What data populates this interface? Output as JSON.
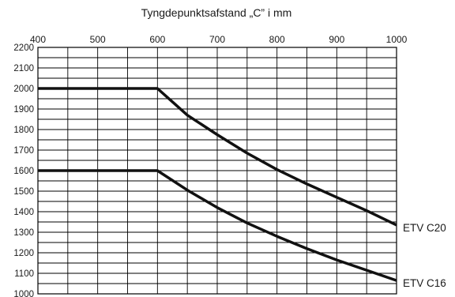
{
  "chart_data": {
    "type": "line",
    "title": "Tyngdepunktsafstand „C” i mm",
    "xlabel": "",
    "ylabel": "",
    "xlim": [
      400,
      1000
    ],
    "ylim": [
      1000,
      2200
    ],
    "x_ticks": [
      400,
      500,
      600,
      700,
      800,
      900,
      1000
    ],
    "y_ticks": [
      2200,
      2100,
      2000,
      1900,
      1800,
      1700,
      1600,
      1500,
      1400,
      1300,
      1200,
      1100,
      1000
    ],
    "x_minor_step": 50,
    "y_minor_step": 50,
    "x_axis_position": "top",
    "grid": true,
    "legend": "none",
    "series": [
      {
        "name": "ETV C20",
        "x": [
          400,
          600,
          650,
          700,
          750,
          800,
          850,
          900,
          950,
          1000
        ],
        "y": [
          2000,
          2000,
          1870,
          1775,
          1685,
          1605,
          1535,
          1470,
          1405,
          1335
        ]
      },
      {
        "name": "ETV C16",
        "x": [
          400,
          600,
          650,
          700,
          750,
          800,
          850,
          900,
          950,
          1000
        ],
        "y": [
          1600,
          1600,
          1505,
          1420,
          1345,
          1280,
          1220,
          1165,
          1115,
          1065
        ]
      }
    ]
  }
}
